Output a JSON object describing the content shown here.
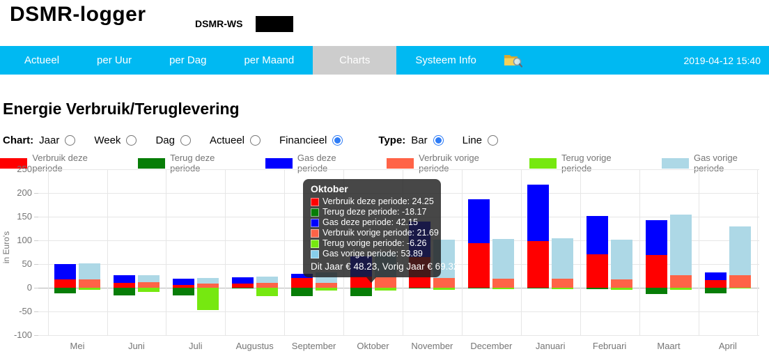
{
  "header": {
    "title": "DSMR-logger",
    "subtitle": "DSMR-WS"
  },
  "nav": {
    "items": [
      "Actueel",
      "per Uur",
      "per Dag",
      "per Maand",
      "Charts",
      "Systeem Info"
    ],
    "active": "Charts",
    "icon": "fsexplorer-icon",
    "timestamp": "2019-04-12 15:40"
  },
  "page": {
    "title": "Energie Verbruik/Teruglevering"
  },
  "controls": {
    "chart_label": "Chart:",
    "chart_options": [
      "Jaar",
      "Week",
      "Dag",
      "Actueel",
      "Financieel"
    ],
    "chart_selected": "Financieel",
    "type_label": "Type:",
    "type_options": [
      "Bar",
      "Line"
    ],
    "type_selected": "Bar"
  },
  "colors": {
    "navbar": "#00b9f2",
    "active_tab": "#cdcdcd",
    "radio_accent": "#2e7cf6",
    "grid": "#e6e6e6",
    "zero_line": "#b3b3b3",
    "axis_text": "#757575"
  },
  "chart_data": {
    "type": "bar",
    "title": "",
    "ylabel": "in Euro's",
    "xlabel": "",
    "ylim": [
      -100,
      250
    ],
    "yticks": [
      250,
      200,
      150,
      100,
      50,
      0,
      -50,
      -100
    ],
    "grid": true,
    "legend_position": "top",
    "categories": [
      "Mei",
      "Juni",
      "Juli",
      "Augustus",
      "September",
      "Oktober",
      "November",
      "December",
      "Januari",
      "Februari",
      "Maart",
      "April"
    ],
    "series": [
      {
        "name": "Verbruik deze periode",
        "color": "#ff0000",
        "values": [
          17.5,
          10.5,
          6.5,
          9,
          20,
          24.25,
          65,
          94,
          99,
          71,
          69,
          16.5
        ]
      },
      {
        "name": "Terug deze periode",
        "color": "#077d07",
        "values": [
          -12,
          -15.5,
          -15.5,
          -1,
          -18,
          -18.17,
          -1,
          -2,
          -2,
          -3,
          -13,
          -12
        ]
      },
      {
        "name": "Gas deze periode",
        "color": "#0000ff",
        "values": [
          33,
          15.5,
          12.5,
          13,
          9.5,
          42.15,
          74,
          93,
          118,
          81,
          74,
          16.5
        ]
      },
      {
        "name": "Verbruik vorige periode",
        "color": "#ff6347",
        "values": [
          17.5,
          12,
          9,
          10.5,
          11,
          21.69,
          20,
          19.5,
          19.5,
          18,
          27,
          27
        ]
      },
      {
        "name": "Terug vorige periode",
        "color": "#76e810",
        "values": [
          -5,
          -9.5,
          -46.5,
          -18,
          -6,
          -6.26,
          -5,
          -3,
          -2.5,
          -4.5,
          -5,
          -1
        ]
      },
      {
        "name": "Gas vorige periode",
        "color": "#add8e6",
        "values": [
          34,
          15,
          12,
          12.5,
          21,
          53.89,
          82,
          83,
          85,
          83,
          127,
          103
        ]
      }
    ],
    "stack_groups": [
      [
        "Verbruik deze periode",
        "Gas deze periode",
        "Terug deze periode"
      ],
      [
        "Verbruik vorige periode",
        "Gas vorige periode",
        "Terug vorige periode"
      ]
    ]
  },
  "tooltip": {
    "title": "Oktober",
    "rows": [
      {
        "label": "Verbruik deze periode",
        "value": "24.25",
        "color": "#ff0000"
      },
      {
        "label": "Terug deze periode",
        "value": "-18.17",
        "color": "#077d07"
      },
      {
        "label": "Gas deze periode",
        "value": "42.15",
        "color": "#0000ff"
      },
      {
        "label": "Verbruik vorige periode",
        "value": "21.69",
        "color": "#ff6347"
      },
      {
        "label": "Terug vorige periode",
        "value": "-6.26",
        "color": "#76e810"
      },
      {
        "label": "Gas vorige periode",
        "value": "53.89",
        "color": "#87ceeb"
      }
    ],
    "footer": "Dit Jaar € 48.23, Vorig Jaar € 69.32"
  }
}
